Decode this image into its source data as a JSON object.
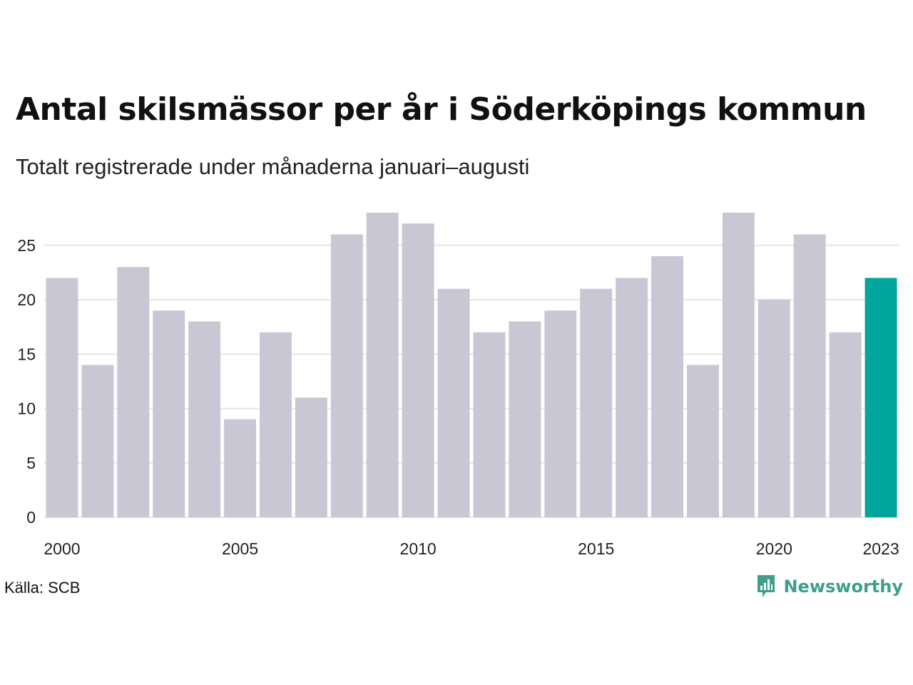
{
  "title": "Antal skilsmässor per år i Söderköpings kommun",
  "subtitle": "Totalt registrerade under månaderna januari–augusti",
  "source": "Källa: SCB",
  "brand": {
    "name": "Newsworthy",
    "icon": "newsworthy-chart-bubble-icon",
    "color": "#3f9e8c"
  },
  "chart_data": {
    "type": "bar",
    "categories": [
      "2000",
      "2001",
      "2002",
      "2003",
      "2004",
      "2005",
      "2006",
      "2007",
      "2008",
      "2009",
      "2010",
      "2011",
      "2012",
      "2013",
      "2014",
      "2015",
      "2016",
      "2017",
      "2018",
      "2019",
      "2020",
      "2021",
      "2022",
      "2023"
    ],
    "values": [
      22,
      14,
      23,
      19,
      18,
      9,
      17,
      11,
      26,
      28,
      27,
      21,
      17,
      18,
      19,
      21,
      22,
      24,
      14,
      28,
      20,
      26,
      17,
      22
    ],
    "x_tick_labels": [
      "2000",
      "2005",
      "2010",
      "2015",
      "2020",
      "2023"
    ],
    "y_ticks": [
      0,
      5,
      10,
      15,
      20,
      25
    ],
    "ylim": [
      0,
      28
    ],
    "grid": true,
    "bar_color": "#c8c7d3",
    "highlight_category": "2023",
    "highlight_color": "#00a69c",
    "gridline_color": "#e6e6e6",
    "xlabel": "",
    "ylabel": ""
  }
}
